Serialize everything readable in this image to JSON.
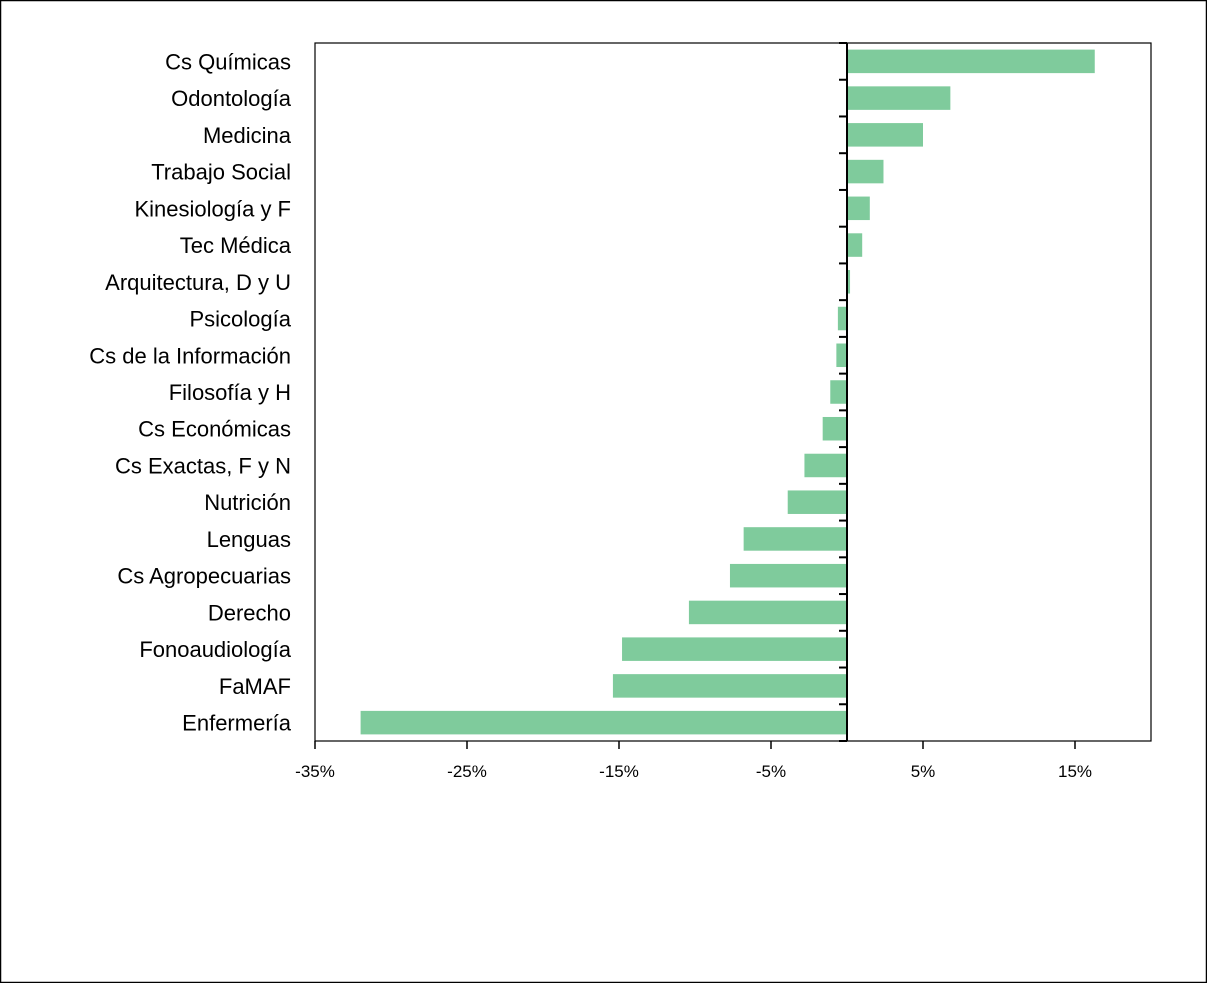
{
  "chart_data": {
    "type": "bar",
    "orientation": "horizontal",
    "title": "",
    "xlabel": "",
    "ylabel": "",
    "categories": [
      "Cs Químicas",
      "Odontología",
      "Medicina",
      "Trabajo Social",
      "Kinesiología y F",
      "Tec Médica",
      "Arquitectura, D y U",
      "Psicología",
      "Cs de la Información",
      "Filosofía y H",
      "Cs Económicas",
      "Cs Exactas, F y N",
      "Nutrición",
      "Lenguas",
      "Cs Agropecuarias",
      "Derecho",
      "Fonoaudiología",
      "FaMAF",
      "Enfermería"
    ],
    "values": [
      16.3,
      6.8,
      5.0,
      2.4,
      1.5,
      1.0,
      0.2,
      -0.6,
      -0.7,
      -1.1,
      -1.6,
      -2.8,
      -3.9,
      -6.8,
      -7.7,
      -10.4,
      -14.8,
      -15.4,
      -32.0
    ],
    "xlim": [
      -35,
      20
    ],
    "xticks": [
      -35,
      -25,
      -15,
      -5,
      5,
      15
    ],
    "xtick_labels": [
      "-35%",
      "-25%",
      "-15%",
      "-5%",
      "5%",
      "15%"
    ],
    "grid": false,
    "legend": "none",
    "bar_color": "#7fcb9c"
  }
}
